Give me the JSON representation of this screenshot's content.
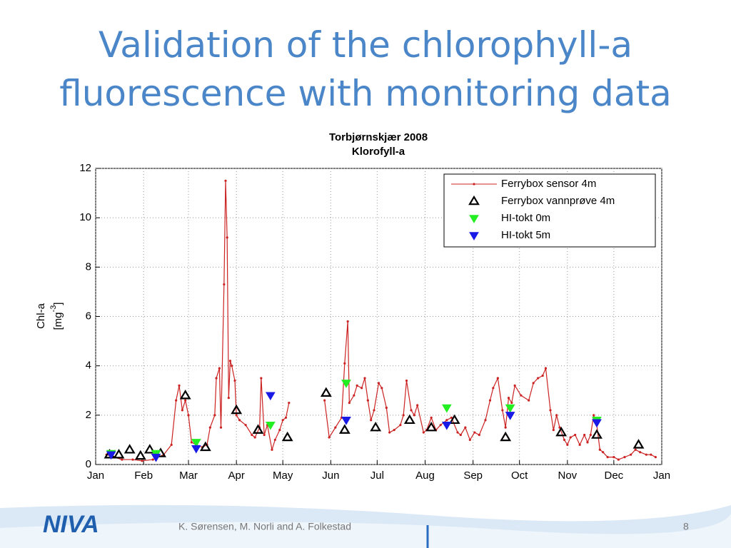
{
  "slide_title": [
    "Validation of the chlorophyll-a",
    "fluorescence with monitoring data"
  ],
  "chart_data": {
    "type": "line",
    "title": [
      "Torbjørnskjær 2008",
      "Klorofyll-a"
    ],
    "ylabel": {
      "line1": "Chl-a",
      "unit": "[mg",
      "exponent": "-3",
      "close": "]"
    },
    "xlim": [
      1,
      367
    ],
    "xticks": [
      {
        "value": 1,
        "label": "Jan"
      },
      {
        "value": 32,
        "label": "Feb"
      },
      {
        "value": 61,
        "label": "Mar"
      },
      {
        "value": 92,
        "label": "Apr"
      },
      {
        "value": 122,
        "label": "May"
      },
      {
        "value": 153,
        "label": "Jun"
      },
      {
        "value": 183,
        "label": "Jul"
      },
      {
        "value": 214,
        "label": "Aug"
      },
      {
        "value": 245,
        "label": "Sep"
      },
      {
        "value": 275,
        "label": "Oct"
      },
      {
        "value": 306,
        "label": "Nov"
      },
      {
        "value": 336,
        "label": "Dec"
      },
      {
        "value": 367,
        "label": "Jan"
      }
    ],
    "ylim": [
      0,
      12
    ],
    "yticks": [
      0,
      2,
      4,
      6,
      8,
      10,
      12
    ],
    "grid": true,
    "legend": "top-right",
    "series": [
      {
        "name": "Ferrybox sensor 4m",
        "color": "#cc2222",
        "marker": "dot-line",
        "x": [
          8,
          13,
          18,
          25,
          31,
          38,
          45,
          50,
          53,
          55,
          57,
          59,
          61,
          63,
          66,
          70,
          73,
          75,
          78,
          79,
          81,
          82,
          84,
          85,
          86,
          87,
          88,
          89,
          91,
          92,
          94,
          98,
          102,
          104,
          107,
          108,
          110,
          112,
          115,
          117,
          120,
          122,
          124,
          126,
          135,
          149,
          152,
          156,
          160,
          162,
          164,
          165,
          168,
          170,
          173,
          175,
          177,
          179,
          181,
          184,
          186,
          189,
          191,
          194,
          198,
          200,
          202,
          205,
          207,
          209,
          213,
          215,
          218,
          221,
          224,
          228,
          231,
          235,
          237,
          240,
          243,
          246,
          249,
          253,
          256,
          258,
          261,
          264,
          266,
          268,
          270,
          272,
          276,
          281,
          284,
          287,
          290,
          292,
          295,
          297,
          299,
          301,
          304,
          306,
          308,
          311,
          314,
          317,
          319,
          321,
          323,
          325,
          327,
          329,
          332,
          336,
          339,
          343,
          347,
          350,
          353,
          357,
          360,
          363
        ],
        "values": [
          0.4,
          0.3,
          0.2,
          0.2,
          0.15,
          0.2,
          0.4,
          0.8,
          2.6,
          3.2,
          2.2,
          2.6,
          2.0,
          0.9,
          0.8,
          0.7,
          0.8,
          1.5,
          2.0,
          3.5,
          3.9,
          1.5,
          7.3,
          11.5,
          9.2,
          2.7,
          4.2,
          4.0,
          3.4,
          2.0,
          1.8,
          1.6,
          1.2,
          1.1,
          1.5,
          3.5,
          1.2,
          1.6,
          0.6,
          1.0,
          1.4,
          1.8,
          1.9,
          2.5,
          null,
          2.6,
          1.1,
          1.5,
          1.9,
          4.1,
          5.8,
          2.5,
          2.8,
          3.2,
          3.1,
          3.5,
          2.6,
          1.8,
          2.2,
          3.3,
          3.1,
          2.3,
          1.3,
          1.4,
          1.6,
          2.0,
          3.4,
          2.2,
          2.0,
          2.4,
          1.3,
          1.4,
          1.9,
          1.4,
          1.6,
          1.8,
          1.9,
          1.3,
          1.2,
          1.5,
          1.0,
          1.3,
          1.2,
          1.8,
          2.6,
          3.1,
          3.5,
          2.2,
          1.5,
          2.7,
          2.5,
          3.2,
          2.8,
          2.6,
          3.3,
          3.5,
          3.6,
          3.9,
          2.2,
          1.4,
          2.0,
          1.5,
          1.0,
          0.8,
          1.1,
          1.2,
          0.8,
          1.2,
          0.9,
          1.2,
          2.0,
          1.6,
          0.6,
          0.5,
          0.3,
          0.3,
          0.2,
          0.3,
          0.4,
          0.6,
          0.5,
          0.4,
          0.4,
          0.3
        ]
      },
      {
        "name": "Ferrybox vannprøve 4m",
        "color": "#000000",
        "marker": "triangle-up-open",
        "x": [
          10,
          16,
          23,
          30,
          36,
          43,
          59,
          72,
          92,
          106,
          125,
          150,
          162,
          182,
          204,
          218,
          233,
          266,
          302,
          325,
          352
        ],
        "values": [
          0.4,
          0.4,
          0.6,
          0.35,
          0.6,
          0.45,
          2.8,
          0.7,
          2.2,
          1.4,
          1.1,
          2.9,
          1.4,
          1.5,
          1.8,
          1.5,
          1.8,
          1.1,
          1.3,
          1.2,
          0.8
        ]
      },
      {
        "name": "HI-tokt 0m",
        "color": "#22ee22",
        "marker": "triangle-down",
        "x": [
          11,
          40,
          66,
          114,
          163,
          228,
          269,
          325
        ],
        "values": [
          0.45,
          0.45,
          0.9,
          1.6,
          3.3,
          2.3,
          2.3,
          1.8
        ]
      },
      {
        "name": "HI-tokt 5m",
        "color": "#1a1ae6",
        "marker": "triangle-down",
        "x": [
          11,
          40,
          66,
          114,
          163,
          228,
          269,
          325
        ],
        "values": [
          0.4,
          0.3,
          0.65,
          2.8,
          1.8,
          1.6,
          2.0,
          1.7
        ]
      }
    ]
  },
  "footer": {
    "logo": "NIVA",
    "authors": "K. Sørensen, M. Norli and A. Folkestad",
    "page": "8"
  }
}
